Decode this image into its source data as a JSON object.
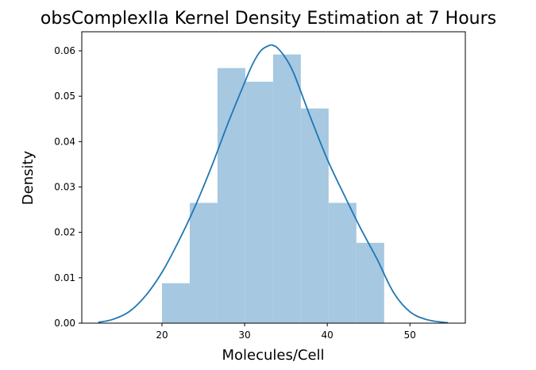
{
  "chart_data": {
    "type": "bar",
    "title": "obsComplexIIa Kernel Density Estimation at 7 Hours",
    "xlabel": "Molecules/Cell",
    "ylabel": "Density",
    "xlim": [
      10.3,
      56.7
    ],
    "ylim": [
      0,
      0.0642
    ],
    "xticks": [
      20,
      30,
      40,
      50
    ],
    "yticks": [
      0.0,
      0.01,
      0.02,
      0.03,
      0.04,
      0.05,
      0.06
    ],
    "ytick_labels": [
      "0.00",
      "0.01",
      "0.02",
      "0.03",
      "0.04",
      "0.05",
      "0.06"
    ],
    "grid": false,
    "legend": "none",
    "colors": {
      "bars": "#a6c8e1",
      "kde": "#1f77b4"
    },
    "histogram": {
      "bin_edges": [
        20.0,
        23.36,
        26.72,
        30.08,
        33.44,
        36.8,
        40.16,
        43.52,
        46.88
      ],
      "values": [
        0.0088,
        0.0265,
        0.0562,
        0.0532,
        0.0592,
        0.0473,
        0.0265,
        0.0177
      ]
    },
    "kde": {
      "x": [
        12.3,
        14,
        16,
        18,
        20,
        22,
        24,
        26,
        28,
        30,
        31,
        32,
        33,
        33.4,
        34,
        35,
        36,
        38,
        40,
        42,
        44,
        46,
        48,
        50,
        52,
        54,
        54.6
      ],
      "y": [
        0.0002,
        0.0008,
        0.0025,
        0.006,
        0.0112,
        0.018,
        0.0257,
        0.0345,
        0.0441,
        0.053,
        0.0572,
        0.0601,
        0.0612,
        0.0612,
        0.0606,
        0.0583,
        0.0548,
        0.0452,
        0.0361,
        0.0284,
        0.021,
        0.0142,
        0.0068,
        0.0025,
        0.0008,
        0.0002,
        0.0001
      ]
    }
  }
}
